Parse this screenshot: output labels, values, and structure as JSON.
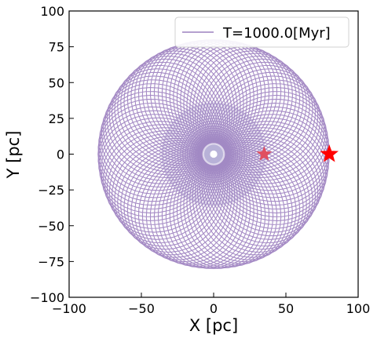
{
  "chart_data": {
    "type": "line",
    "title": "",
    "xlabel": "X [pc]",
    "ylabel": "Y [pc]",
    "xlim": [
      -100,
      100
    ],
    "ylim": [
      -100,
      100
    ],
    "xticks": [
      -100,
      -50,
      0,
      50,
      100
    ],
    "yticks": [
      -100,
      -75,
      -50,
      -25,
      0,
      25,
      50,
      75,
      100
    ],
    "xtick_labels": [
      "−100",
      "−50",
      "0",
      "50",
      "100"
    ],
    "ytick_labels": [
      "−100",
      "−75",
      "−50",
      "−25",
      "0",
      "25",
      "50",
      "75",
      "100"
    ],
    "grid": false,
    "legend_position": "top-right",
    "series": [
      {
        "name": "T=1000.0[Myr]",
        "kind": "rosette-orbit",
        "color": "#5b2c95",
        "r_min": 8,
        "r_max": 80,
        "turns": 60,
        "phase_step_deg": 7.2
      },
      {
        "name": "",
        "kind": "rosette-orbit",
        "color": "#9a88c4",
        "r_min": 0,
        "r_max": 36,
        "turns": 55,
        "phase_step_deg": 6.5
      }
    ],
    "markers": [
      {
        "x": 35,
        "y": 0,
        "shape": "star",
        "color": "#e05060",
        "size": "small"
      },
      {
        "x": 80,
        "y": 0,
        "shape": "star",
        "color": "#ff0000",
        "size": "large"
      }
    ],
    "center_ring": {
      "x": 0,
      "y": 0,
      "inner_radius": 2.5,
      "outer_radius": 6.5,
      "color": "#b8b2d8"
    }
  }
}
